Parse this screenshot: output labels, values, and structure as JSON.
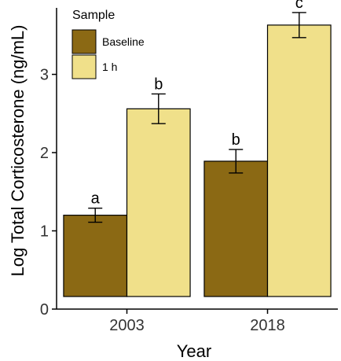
{
  "chart_data": {
    "type": "bar",
    "xlabel": "Year",
    "ylabel": "Log Total Corticosterone (ng/mL)",
    "categories": [
      "2003",
      "2018"
    ],
    "ylim": [
      0,
      3.85
    ],
    "yticks": [
      "0",
      "1",
      "2",
      "3"
    ],
    "grid": false,
    "legend": {
      "title": "Sample",
      "position": "top-left"
    },
    "series": [
      {
        "name": "Baseline",
        "color": "#8b6914",
        "values": [
          1.2,
          1.89
        ],
        "error": [
          0.09,
          0.15
        ],
        "labels": [
          "a",
          "b"
        ]
      },
      {
        "name": "1 h",
        "color": "#f0e08a",
        "values": [
          2.56,
          3.63
        ],
        "error": [
          0.19,
          0.16
        ],
        "labels": [
          "b",
          "c"
        ]
      }
    ]
  }
}
